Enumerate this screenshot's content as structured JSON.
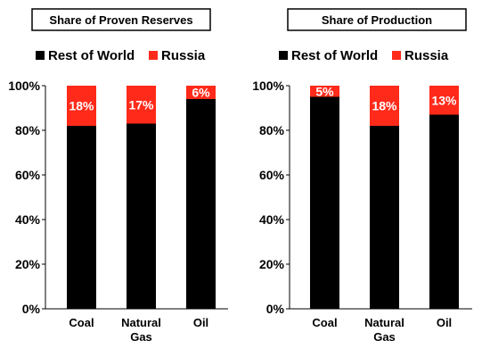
{
  "chart_data": [
    {
      "type": "bar",
      "stacked": true,
      "title": "Share of Proven Reserves",
      "categories": [
        "Coal",
        "Natural Gas",
        "Oil"
      ],
      "category_lines": [
        [
          "Coal"
        ],
        [
          "Natural",
          "Gas"
        ],
        [
          "Oil"
        ]
      ],
      "series": [
        {
          "name": "Rest of World",
          "color": "#000000",
          "values": [
            82,
            83,
            94
          ]
        },
        {
          "name": "Russia",
          "color": "#ff2a1a",
          "values": [
            18,
            17,
            6
          ]
        }
      ],
      "data_labels": [
        "18%",
        "17%",
        "6%"
      ],
      "ylim": [
        0,
        100
      ],
      "yticks": [
        "0%",
        "20%",
        "40%",
        "60%",
        "80%",
        "100%"
      ],
      "legend_position": "top"
    },
    {
      "type": "bar",
      "stacked": true,
      "title": "Share of Production",
      "categories": [
        "Coal",
        "Natural Gas",
        "Oil"
      ],
      "category_lines": [
        [
          "Coal"
        ],
        [
          "Natural",
          "Gas"
        ],
        [
          "Oil"
        ]
      ],
      "series": [
        {
          "name": "Rest of World",
          "color": "#000000",
          "values": [
            95,
            82,
            87
          ]
        },
        {
          "name": "Russia",
          "color": "#ff2a1a",
          "values": [
            5,
            18,
            13
          ]
        }
      ],
      "data_labels": [
        "5%",
        "18%",
        "13%"
      ],
      "ylim": [
        0,
        100
      ],
      "yticks": [
        "0%",
        "20%",
        "40%",
        "60%",
        "80%",
        "100%"
      ],
      "legend_position": "top"
    }
  ]
}
